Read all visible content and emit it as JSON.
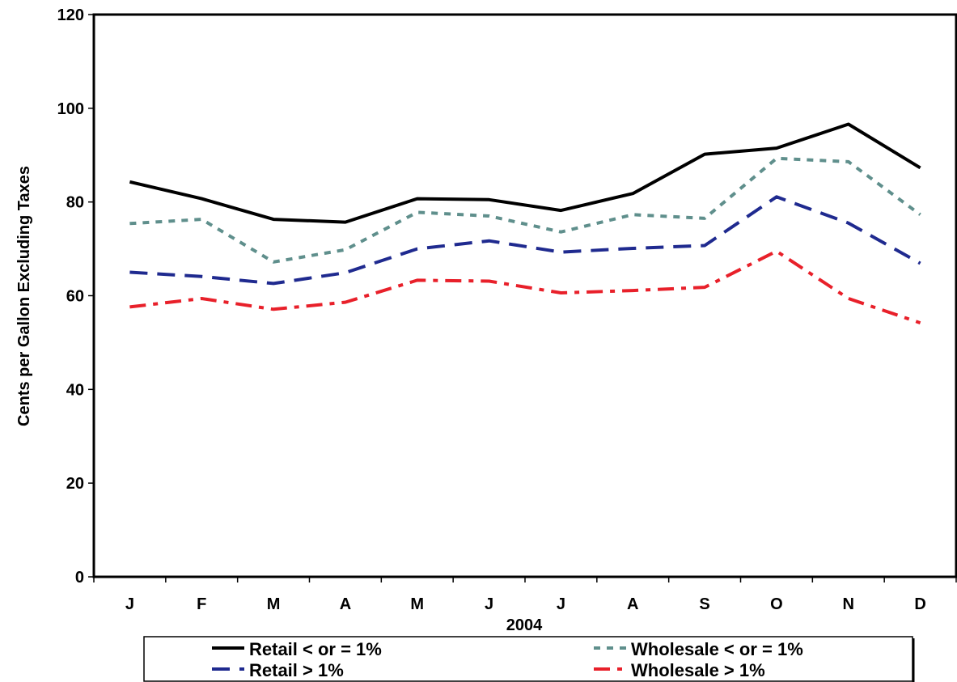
{
  "chart_data": {
    "type": "line",
    "title": "",
    "xlabel": "2004",
    "ylabel": "Cents per Gallon Excluding Taxes",
    "categories": [
      "J",
      "F",
      "M",
      "A",
      "M",
      "J",
      "J",
      "A",
      "S",
      "O",
      "N",
      "D"
    ],
    "ylim": [
      0,
      120
    ],
    "yticks": [
      0,
      20,
      40,
      60,
      80,
      100,
      120
    ],
    "grid": false,
    "legend_position": "bottom",
    "series": [
      {
        "name": "Retail < or = 1%",
        "color": "#000000",
        "dash": "solid",
        "values": [
          84.3,
          80.7,
          76.3,
          75.7,
          80.7,
          80.5,
          78.2,
          81.8,
          90.2,
          91.5,
          96.6,
          87.3
        ]
      },
      {
        "name": "Wholesale < or = 1%",
        "color": "#5f8f8c",
        "dash": "dotted",
        "values": [
          75.4,
          76.3,
          67.2,
          69.8,
          77.8,
          77.0,
          73.6,
          77.3,
          76.5,
          89.3,
          88.6,
          77.3
        ]
      },
      {
        "name": "Retail > 1%",
        "color": "#1f2a8f",
        "dash": "dashed",
        "values": [
          65.0,
          64.1,
          62.6,
          64.9,
          70.0,
          71.7,
          69.3,
          70.1,
          70.7,
          81.1,
          75.5,
          66.9
        ]
      },
      {
        "name": "Wholesale > 1%",
        "color": "#e8202a",
        "dash": "dashdot",
        "values": [
          57.6,
          59.4,
          57.1,
          58.6,
          63.3,
          63.1,
          60.6,
          61.1,
          61.8,
          69.5,
          59.4,
          54.2
        ]
      }
    ]
  }
}
